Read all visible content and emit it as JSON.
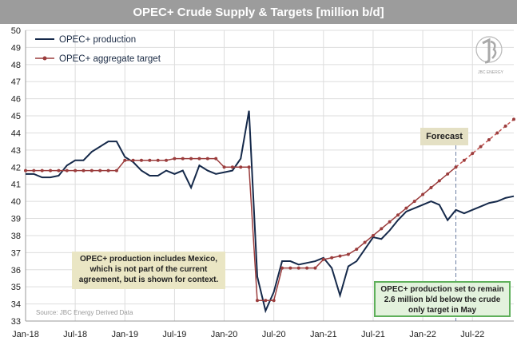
{
  "title": "OPEC+ Crude Supply & Targets [million b/d]",
  "source": "Source: JBC Energy Derived Data",
  "logo_text": "JBC ENERGY",
  "forecast_label": "Forecast",
  "note_mexico": "OPEC+ production includes Mexico, which is not part of the current agreement, but is shown for context.",
  "note_remain": "OPEC+ production set to remain 2.6 million b/d below the crude only target in May",
  "colors": {
    "production": "#15294a",
    "target": "#9b3d3d",
    "forecast_target": "#c0504d",
    "grid": "#dddddd",
    "title_bar": "#9c9c9c"
  },
  "chart_data": {
    "type": "line",
    "title": "OPEC+ Crude Supply & Targets [million b/d]",
    "xlabel": "",
    "ylabel": "",
    "ylim": [
      33,
      50
    ],
    "yticks": [
      33,
      34,
      35,
      36,
      37,
      38,
      39,
      40,
      41,
      42,
      43,
      44,
      45,
      46,
      47,
      48,
      49,
      50
    ],
    "xticks": [
      "Jan-18",
      "Jul-18",
      "Jan-19",
      "Jul-19",
      "Jan-20",
      "Jul-20",
      "Jan-21",
      "Jul-21",
      "Jan-22",
      "Jul-22"
    ],
    "x_start": "Jan-18",
    "x_end": "Dec-22",
    "grid": true,
    "legend_position": "top-left",
    "forecast_start": "May-22",
    "series": [
      {
        "name": "OPEC+ production",
        "x": [
          "Jan-18",
          "Feb-18",
          "Mar-18",
          "Apr-18",
          "May-18",
          "Jun-18",
          "Jul-18",
          "Aug-18",
          "Sep-18",
          "Oct-18",
          "Nov-18",
          "Dec-18",
          "Jan-19",
          "Feb-19",
          "Mar-19",
          "Apr-19",
          "May-19",
          "Jun-19",
          "Jul-19",
          "Aug-19",
          "Sep-19",
          "Oct-19",
          "Nov-19",
          "Dec-19",
          "Jan-20",
          "Feb-20",
          "Mar-20",
          "Apr-20",
          "May-20",
          "Jun-20",
          "Jul-20",
          "Aug-20",
          "Sep-20",
          "Oct-20",
          "Nov-20",
          "Dec-20",
          "Jan-21",
          "Feb-21",
          "Mar-21",
          "Apr-21",
          "May-21",
          "Jun-21",
          "Jul-21",
          "Aug-21",
          "Sep-21",
          "Oct-21",
          "Nov-21",
          "Dec-21",
          "Jan-22",
          "Feb-22",
          "Mar-22",
          "Apr-22",
          "May-22",
          "Jun-22",
          "Jul-22",
          "Aug-22",
          "Sep-22",
          "Oct-22",
          "Nov-22",
          "Dec-22"
        ],
        "values": [
          41.6,
          41.6,
          41.4,
          41.4,
          41.5,
          42.1,
          42.4,
          42.4,
          42.9,
          43.2,
          43.5,
          43.5,
          42.6,
          42.3,
          41.8,
          41.5,
          41.5,
          41.8,
          41.6,
          41.8,
          40.8,
          42.1,
          41.8,
          41.6,
          41.7,
          41.8,
          42.5,
          45.3,
          35.6,
          33.6,
          34.7,
          36.5,
          36.5,
          36.3,
          36.4,
          36.5,
          36.7,
          36.1,
          34.5,
          36.2,
          36.5,
          37.2,
          37.9,
          37.8,
          38.3,
          38.9,
          39.4,
          39.6,
          39.8,
          40.0,
          39.8,
          38.9,
          39.5,
          39.3,
          39.5,
          39.7,
          39.9,
          40.0,
          40.2,
          40.3
        ]
      },
      {
        "name": "OPEC+ aggregate target",
        "x": [
          "Jan-18",
          "Feb-18",
          "Mar-18",
          "Apr-18",
          "May-18",
          "Jun-18",
          "Jul-18",
          "Aug-18",
          "Sep-18",
          "Oct-18",
          "Nov-18",
          "Dec-18",
          "Jan-19",
          "Feb-19",
          "Mar-19",
          "Apr-19",
          "May-19",
          "Jun-19",
          "Jul-19",
          "Aug-19",
          "Sep-19",
          "Oct-19",
          "Nov-19",
          "Dec-19",
          "Jan-20",
          "Feb-20",
          "Mar-20",
          "Apr-20",
          "May-20",
          "Jun-20",
          "Jul-20",
          "Aug-20",
          "Sep-20",
          "Oct-20",
          "Nov-20",
          "Dec-20",
          "Jan-21",
          "Feb-21",
          "Mar-21",
          "Apr-21",
          "May-21",
          "Jun-21",
          "Jul-21",
          "Aug-21",
          "Sep-21",
          "Oct-21",
          "Nov-21",
          "Dec-21",
          "Jan-22",
          "Feb-22",
          "Mar-22",
          "Apr-22",
          "May-22",
          "Jun-22",
          "Jul-22",
          "Aug-22",
          "Sep-22",
          "Oct-22",
          "Nov-22",
          "Dec-22"
        ],
        "values": [
          41.8,
          41.8,
          41.8,
          41.8,
          41.8,
          41.8,
          41.8,
          41.8,
          41.8,
          41.8,
          41.8,
          41.8,
          42.4,
          42.4,
          42.4,
          42.4,
          42.4,
          42.4,
          42.5,
          42.5,
          42.5,
          42.5,
          42.5,
          42.5,
          42.0,
          42.0,
          42.0,
          42.0,
          34.2,
          34.2,
          34.2,
          36.1,
          36.1,
          36.1,
          36.1,
          36.1,
          36.6,
          36.7,
          36.8,
          36.9,
          37.2,
          37.6,
          38.0,
          38.4,
          38.8,
          39.2,
          39.6,
          40.0,
          40.4,
          40.8,
          41.2,
          41.6,
          42.0,
          42.4,
          42.8,
          43.2,
          43.6,
          44.0,
          44.4,
          44.8
        ]
      }
    ]
  }
}
